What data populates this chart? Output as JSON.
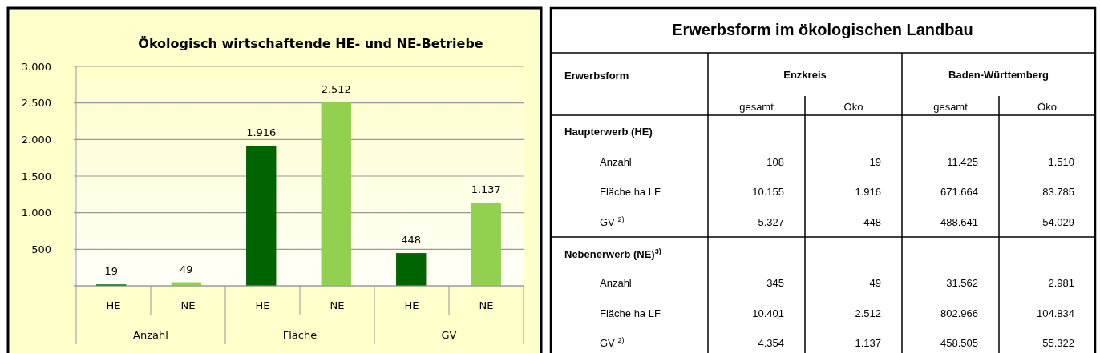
{
  "chart_data": [
    {
      "type": "bar",
      "title": "Ökologisch wirtschaftende HE- und NE-Betriebe",
      "categories": [
        "HE",
        "NE",
        "HE",
        "NE",
        "HE",
        "NE"
      ],
      "values": [
        19,
        49,
        1916,
        2512,
        448,
        1137
      ],
      "colors": [
        "#006400",
        "#92d050",
        "#006400",
        "#92d050",
        "#006400",
        "#92d050"
      ],
      "ylim": [
        0,
        3000
      ],
      "yticks": [
        {
          "value": 0,
          "label": "-"
        },
        500,
        {
          "value": 1000,
          "label": "1.000"
        },
        {
          "value": 1500,
          "label": "1.500"
        },
        {
          "value": 2000,
          "label": "2.000"
        },
        {
          "value": 2500,
          "label": "2.500"
        },
        {
          "value": 3000,
          "label": "3.000"
        }
      ],
      "value_labels": [
        "19",
        "49",
        "1.916",
        "2.512",
        "448",
        "1.137"
      ],
      "grid": "y",
      "annotations": [
        "Anzahl",
        "Fläche",
        "GV"
      ]
    },
    {
      "type": "other",
      "title": "Erwerbsform im ökologischen Landbau",
      "annotations": [
        "Erwerbsform",
        "Enzkreis",
        "Baden-Württemberg",
        "gesamt",
        "Öko",
        "gesamt",
        "Öko",
        "Haupterwerb (HE)",
        "Anzahl",
        "108",
        "19",
        "11.425",
        "1.510",
        "Fläche ha LF",
        "10.155",
        "1.916",
        "671.664",
        "83.785",
        "GV $^{2)}$",
        "5.327",
        "448",
        "488.641",
        "54.029",
        "Nebenerwerb (NE)$^{3)}$",
        "Anzahl",
        "345",
        "49",
        "31.562",
        "2.981",
        "Fläche ha LF",
        "10.401",
        "2.512",
        "802.966",
        "104.834",
        "GV $^{2)}$",
        "4.354",
        "1.137",
        "458.505",
        "55.322"
      ]
    }
  ]
}
